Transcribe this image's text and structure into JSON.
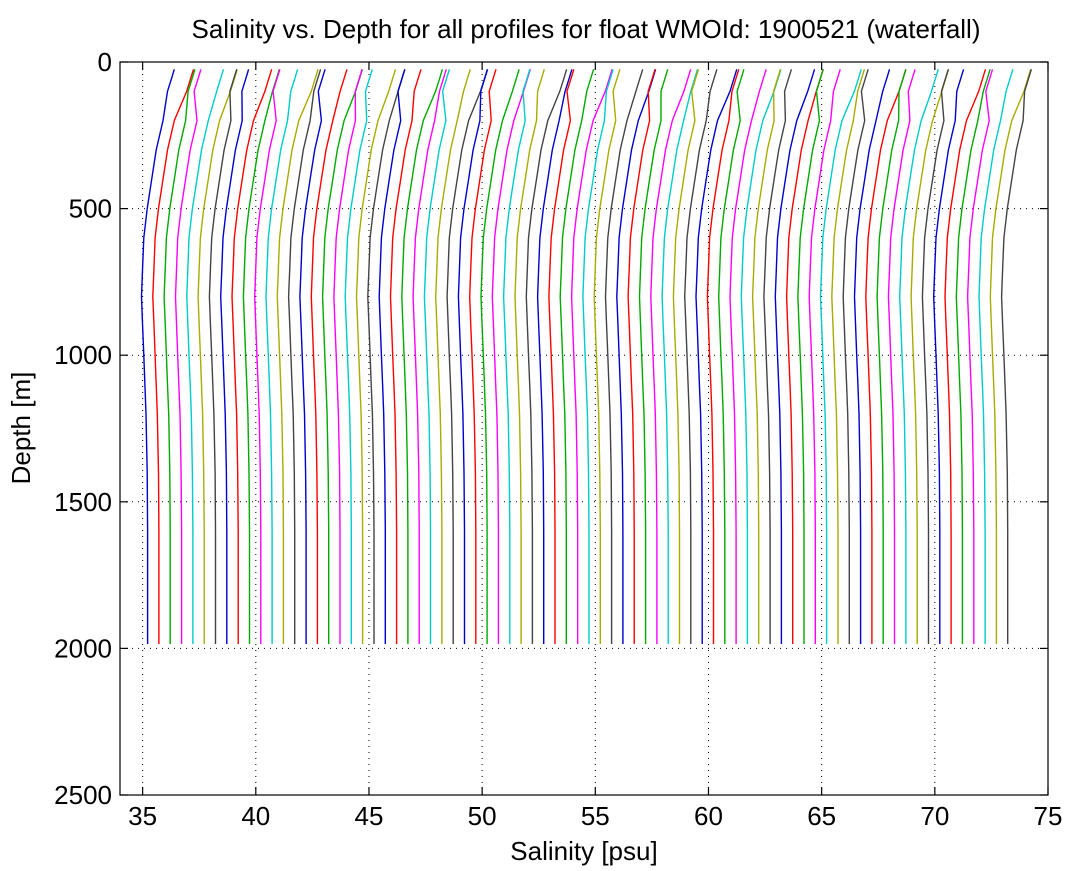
{
  "chart_data": {
    "type": "line",
    "title": "Salinity vs. Depth for all profiles for float WMOId: 1900521 (waterfall)",
    "xlabel": "Salinity [psu]",
    "ylabel": "Depth [m]",
    "xlim": [
      34,
      75
    ],
    "ylim": [
      0,
      2500
    ],
    "y_reversed": true,
    "xticks": [
      35,
      40,
      45,
      50,
      55,
      60,
      65,
      70,
      75
    ],
    "yticks": [
      0,
      500,
      1000,
      1500,
      2000,
      2500
    ],
    "xtick_labels": [
      "35",
      "40",
      "45",
      "50",
      "55",
      "60",
      "65",
      "70",
      "75"
    ],
    "ytick_labels": [
      "0",
      "500",
      "1000",
      "1500",
      "2000",
      "2500"
    ],
    "grid": true,
    "legend": "none",
    "series_style": "waterfall: each successive profile offset by +0.5 psu",
    "num_profiles": 77,
    "profile_offset_psu": 0.5,
    "depth_levels_m": [
      25,
      50,
      100,
      200,
      300,
      400,
      500,
      600,
      700,
      800,
      900,
      1000,
      1100,
      1200,
      1400,
      1600,
      1800,
      1985
    ],
    "base_profile_salinity_psu": [
      36.4,
      36.3,
      36.1,
      35.9,
      35.6,
      35.4,
      35.2,
      35.05,
      35.0,
      34.95,
      35.0,
      35.05,
      35.1,
      35.15,
      35.2,
      35.22,
      35.22,
      35.22
    ],
    "colors": [
      "#0000cc",
      "#ff0000",
      "#00aa00",
      "#ff00ff",
      "#00cccc",
      "#aaaa00",
      "#444444"
    ]
  }
}
